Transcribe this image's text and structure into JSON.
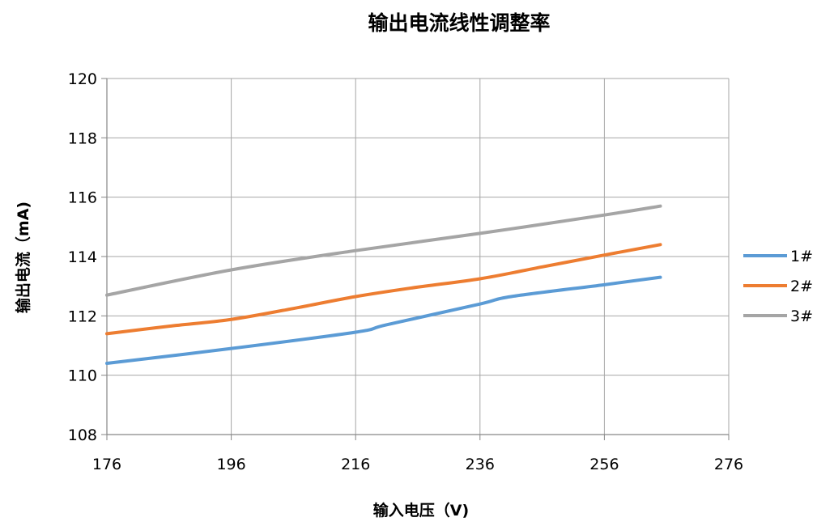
{
  "chart_data": {
    "type": "line",
    "title": "输出电流线性调整率",
    "xlabel": "输入电压（V)",
    "ylabel": "输出电流（mA)",
    "xlim": [
      176,
      276
    ],
    "ylim": [
      108,
      120
    ],
    "xticks": [
      176,
      196,
      216,
      236,
      256,
      276
    ],
    "yticks": [
      108,
      110,
      112,
      114,
      116,
      118,
      120
    ],
    "grid": true,
    "legend_position": "right",
    "series": [
      {
        "name": "1#",
        "color": "#5B9BD5",
        "points": [
          [
            176,
            110.4
          ],
          [
            196,
            110.9
          ],
          [
            216,
            111.45
          ],
          [
            221,
            111.7
          ],
          [
            236,
            112.4
          ],
          [
            241,
            112.65
          ],
          [
            256,
            113.05
          ],
          [
            265,
            113.3
          ]
        ]
      },
      {
        "name": "2#",
        "color": "#ED7D31",
        "points": [
          [
            176,
            111.4
          ],
          [
            186,
            111.65
          ],
          [
            196,
            111.88
          ],
          [
            206,
            112.25
          ],
          [
            216,
            112.65
          ],
          [
            226,
            112.97
          ],
          [
            236,
            113.25
          ],
          [
            246,
            113.65
          ],
          [
            256,
            114.05
          ],
          [
            265,
            114.4
          ]
        ]
      },
      {
        "name": "3#",
        "color": "#A5A5A5",
        "points": [
          [
            176,
            112.7
          ],
          [
            196,
            113.55
          ],
          [
            216,
            114.2
          ],
          [
            236,
            114.78
          ],
          [
            256,
            115.4
          ],
          [
            265,
            115.7
          ]
        ]
      }
    ]
  }
}
